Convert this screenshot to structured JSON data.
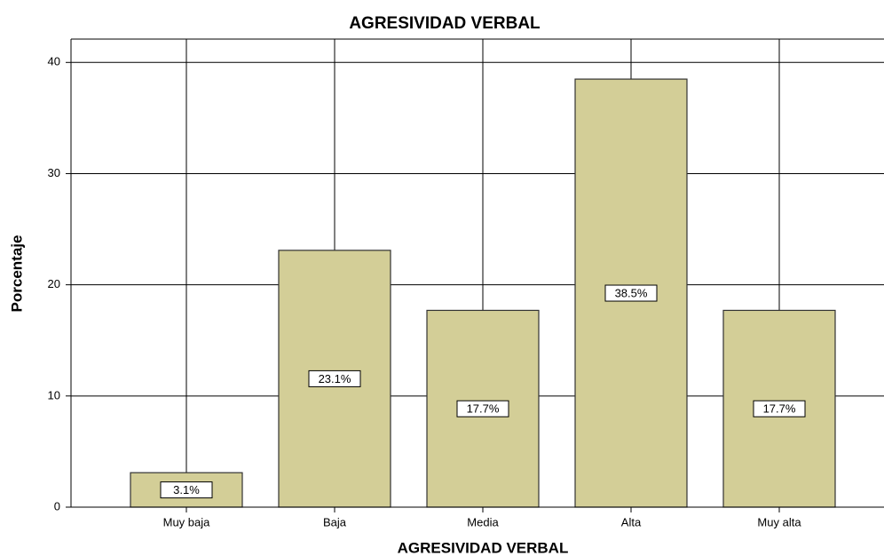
{
  "chart_data": {
    "type": "bar",
    "title": "AGRESIVIDAD VERBAL",
    "x_label": "AGRESIVIDAD VERBAL",
    "y_label": "Porcentaje",
    "categories": [
      "Muy baja",
      "Baja",
      "Media",
      "Alta",
      "Muy alta"
    ],
    "values": [
      3.1,
      23.1,
      17.7,
      38.5,
      17.7
    ],
    "value_labels": [
      "3.1%",
      "23.1%",
      "17.7%",
      "38.5%",
      "17.7%"
    ],
    "color": "#d3ce97",
    "ylim": [
      0,
      42.1
    ],
    "yticks": [
      0,
      10,
      20,
      30,
      40
    ],
    "grid": true
  }
}
